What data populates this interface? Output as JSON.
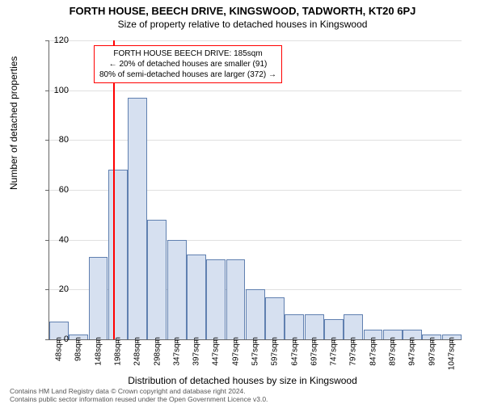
{
  "chart": {
    "type": "histogram",
    "title": "FORTH HOUSE, BEECH DRIVE, KINGSWOOD, TADWORTH, KT20 6PJ",
    "subtitle": "Size of property relative to detached houses in Kingswood",
    "ylabel": "Number of detached properties",
    "xlabel": "Distribution of detached houses by size in Kingswood",
    "title_fontsize": 13,
    "subtitle_fontsize": 12,
    "label_fontsize": 12,
    "tick_fontsize": 11,
    "xtick_fontsize": 10,
    "background_color": "#ffffff",
    "grid_color": "#e0e0e0",
    "axis_color": "#666666",
    "bar_fill": "#d6e0f0",
    "bar_stroke": "#6080b0",
    "bar_width": 0.98,
    "ylim": [
      0,
      120
    ],
    "ytick_step": 20,
    "yticks": [
      0,
      20,
      40,
      60,
      80,
      100,
      120
    ],
    "xtick_labels": [
      "48sqm",
      "98sqm",
      "148sqm",
      "198sqm",
      "248sqm",
      "298sqm",
      "347sqm",
      "397sqm",
      "447sqm",
      "497sqm",
      "547sqm",
      "597sqm",
      "647sqm",
      "697sqm",
      "747sqm",
      "797sqm",
      "847sqm",
      "897sqm",
      "947sqm",
      "997sqm",
      "1047sqm"
    ],
    "values": [
      7,
      2,
      33,
      68,
      97,
      48,
      40,
      34,
      32,
      32,
      20,
      17,
      10,
      10,
      8,
      10,
      4,
      4,
      4,
      2,
      2
    ],
    "marker_line": {
      "color": "#ff0000",
      "width": 2,
      "position_index": 2.75
    },
    "annotation": {
      "line1": "FORTH HOUSE BEECH DRIVE: 185sqm",
      "line2": "← 20% of detached houses are smaller (91)",
      "line3": "80% of semi-detached houses are larger (372) →",
      "border_color": "#ff0000",
      "fontsize": 10,
      "text_color": "#000000",
      "bg_color": "#ffffff"
    }
  },
  "footer": {
    "line1": "Contains HM Land Registry data © Crown copyright and database right 2024.",
    "line2": "Contains public sector information reused under the Open Government Licence v3.0.",
    "color": "#555555",
    "fontsize": 8.5
  }
}
